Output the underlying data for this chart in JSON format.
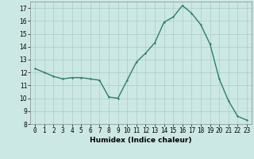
{
  "x": [
    0,
    1,
    2,
    3,
    4,
    5,
    6,
    7,
    8,
    9,
    10,
    11,
    12,
    13,
    14,
    15,
    16,
    17,
    18,
    19,
    20,
    21,
    22,
    23
  ],
  "y": [
    12.3,
    12.0,
    11.7,
    11.5,
    11.6,
    11.6,
    11.5,
    11.4,
    10.1,
    10.0,
    11.4,
    12.8,
    13.5,
    14.3,
    15.9,
    16.3,
    17.2,
    16.6,
    15.7,
    14.2,
    11.5,
    9.8,
    8.6,
    8.3
  ],
  "xlabel": "Humidex (Indice chaleur)",
  "bg_color": "#cce8e4",
  "line_color": "#2e7d6e",
  "marker_color": "#2e7d6e",
  "grid_color": "#aaccca",
  "ylim": [
    8,
    17.5
  ],
  "yticks": [
    8,
    9,
    10,
    11,
    12,
    13,
    14,
    15,
    16,
    17
  ],
  "xticks": [
    0,
    1,
    2,
    3,
    4,
    5,
    6,
    7,
    8,
    9,
    10,
    11,
    12,
    13,
    14,
    15,
    16,
    17,
    18,
    19,
    20,
    21,
    22,
    23
  ],
  "tick_fontsize": 5.5,
  "xlabel_fontsize": 6.5,
  "linewidth": 1.0,
  "markersize": 2.0
}
